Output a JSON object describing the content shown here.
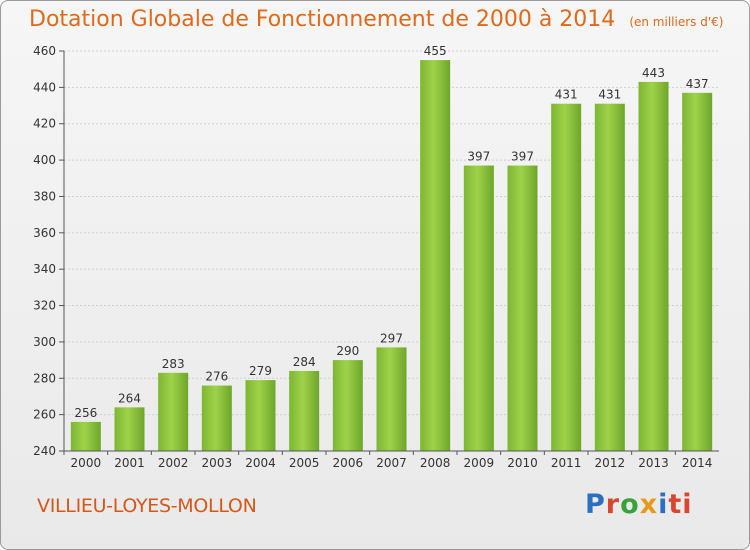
{
  "chart_data": {
    "type": "bar",
    "title": "Dotation Globale de Fonctionnement de 2000 à 2014",
    "subtitle": "(en milliers d'€)",
    "categories": [
      "2000",
      "2001",
      "2002",
      "2003",
      "2004",
      "2005",
      "2006",
      "2007",
      "2008",
      "2009",
      "2010",
      "2011",
      "2012",
      "2013",
      "2014"
    ],
    "values": [
      256,
      264,
      283,
      276,
      279,
      284,
      290,
      297,
      455,
      397,
      397,
      431,
      431,
      443,
      437
    ],
    "ylim": [
      240,
      460
    ],
    "yticks": [
      240,
      260,
      280,
      300,
      320,
      340,
      360,
      380,
      400,
      420,
      440,
      460
    ],
    "grid": true,
    "bar_color": "#8dc63f"
  },
  "footer": {
    "city": "VILLIEU-LOYES-MOLLON",
    "logo_letters": [
      "P",
      "r",
      "o",
      "x",
      "i",
      "ti"
    ]
  }
}
